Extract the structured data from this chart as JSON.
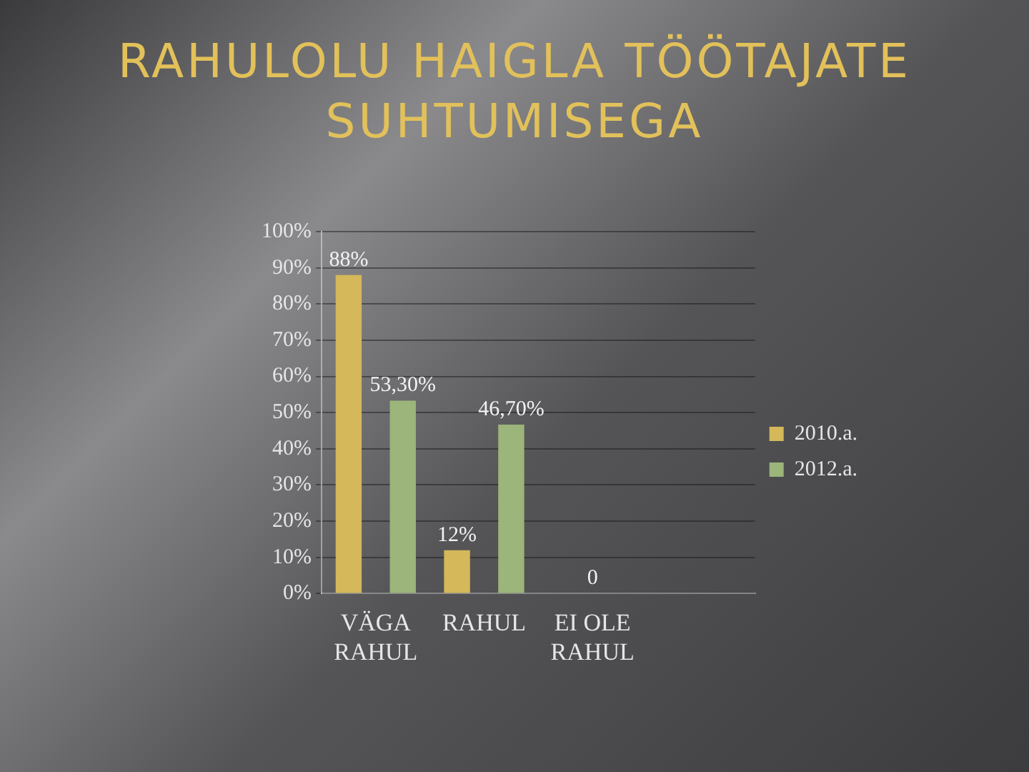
{
  "chart_data": {
    "type": "bar",
    "title": "RAHULOLU HAIGLA TÖÖTAJATE SUHTUMISEGA",
    "categories": [
      "VÄGA RAHUL",
      "RAHUL",
      "EI OLE RAHUL",
      null
    ],
    "series": [
      {
        "name": "2010.a.",
        "color": "#d4b85a",
        "values": [
          88,
          12,
          0,
          null
        ],
        "value_labels": [
          "88%",
          "12%",
          "0",
          null
        ]
      },
      {
        "name": "2012.a.",
        "color": "#9bb57a",
        "values": [
          53.3,
          46.7,
          0,
          null
        ],
        "value_labels": [
          "53,30%",
          "46,70%",
          null,
          null
        ]
      }
    ],
    "ylim": [
      0,
      100
    ],
    "yticks": [
      {
        "value": 0,
        "label": "0%"
      },
      {
        "value": 10,
        "label": "10%"
      },
      {
        "value": 20,
        "label": "20%"
      },
      {
        "value": 30,
        "label": "30%"
      },
      {
        "value": 40,
        "label": "40%"
      },
      {
        "value": 50,
        "label": "50%"
      },
      {
        "value": 60,
        "label": "60%"
      },
      {
        "value": 70,
        "label": "70%"
      },
      {
        "value": 80,
        "label": "80%"
      },
      {
        "value": 90,
        "label": "90%"
      },
      {
        "value": 100,
        "label": "100%"
      }
    ],
    "grid": "y",
    "legend": "right"
  }
}
